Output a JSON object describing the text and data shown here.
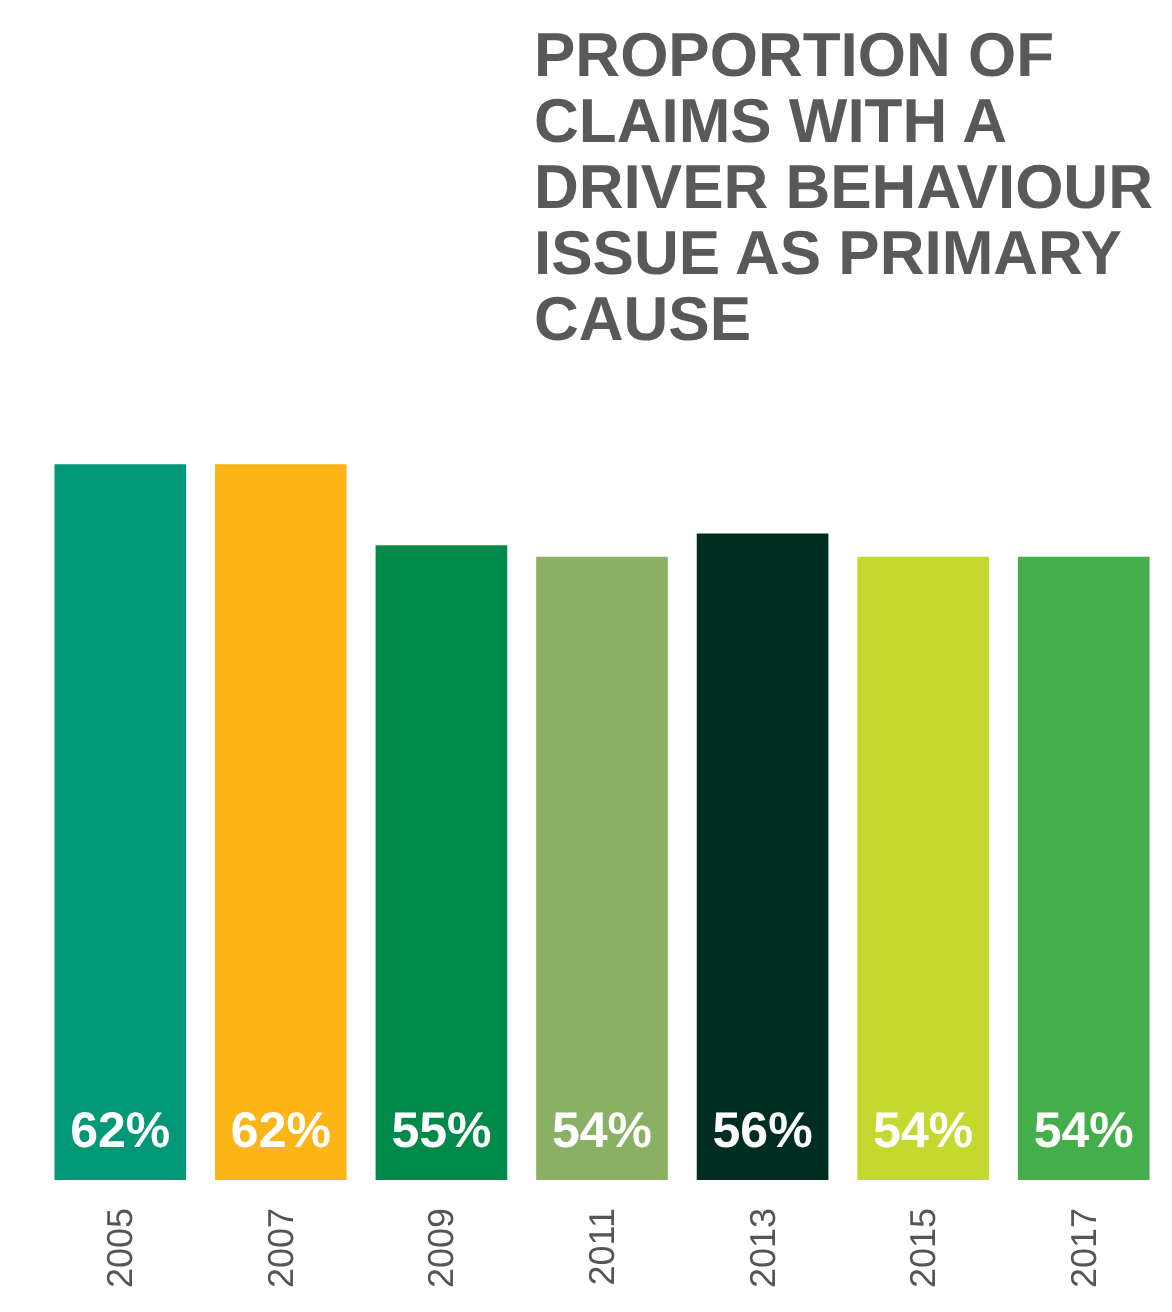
{
  "chart_data": {
    "type": "bar",
    "title": "PROPORTION OF CLAIMS WITH A DRIVER BEHAVIOUR ISSUE AS PRIMARY CAUSE",
    "categories": [
      "2005",
      "2007",
      "2009",
      "2011",
      "2013",
      "2015",
      "2017"
    ],
    "values": [
      62,
      62,
      55,
      54,
      56,
      54,
      54
    ],
    "value_labels": [
      "62%",
      "62%",
      "55%",
      "54%",
      "56%",
      "54%",
      "54%"
    ],
    "colors": [
      "#009877",
      "#fbb516",
      "#008a4a",
      "#8ab063",
      "#002d22",
      "#c5d82e",
      "#44ae4a"
    ]
  }
}
